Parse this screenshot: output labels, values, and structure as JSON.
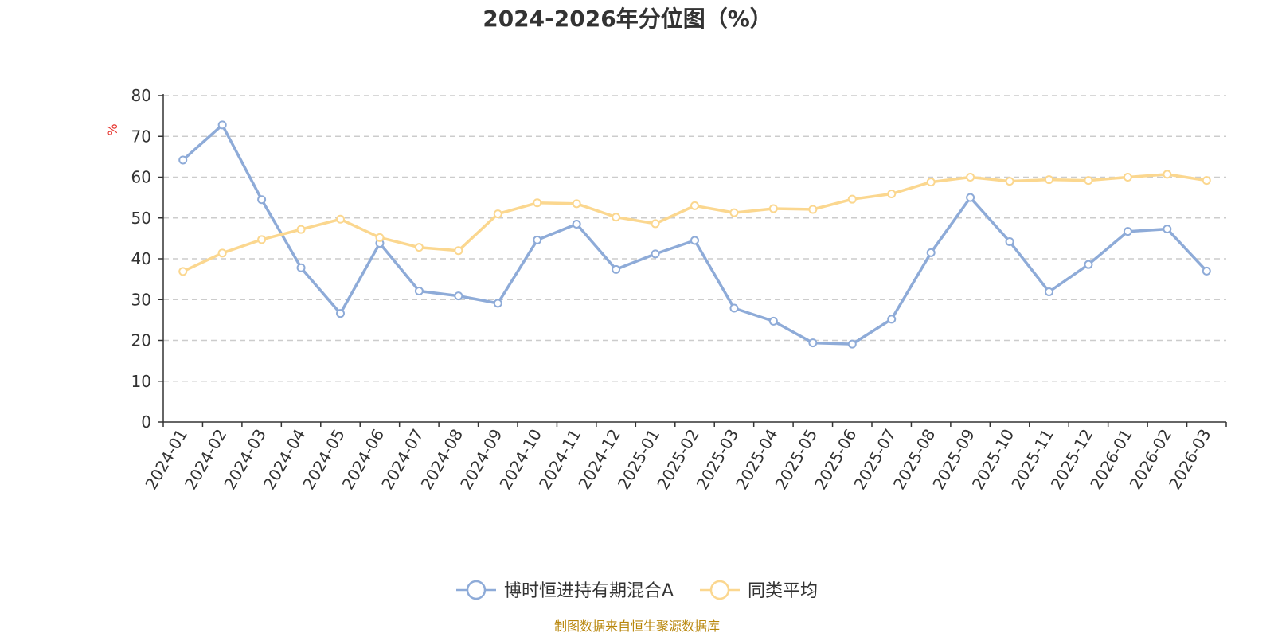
{
  "chart_data": {
    "type": "line",
    "title": "2024-2026年分位图（%）",
    "ylabel": "%",
    "ylim": [
      0,
      80
    ],
    "yticks": [
      0,
      10,
      20,
      30,
      40,
      50,
      60,
      70,
      80
    ],
    "grid": true,
    "legend_position": "bottom",
    "categories": [
      "2024-01",
      "2024-02",
      "2024-03",
      "2024-04",
      "2024-05",
      "2024-06",
      "2024-07",
      "2024-08",
      "2024-09",
      "2024-10",
      "2024-11",
      "2024-12",
      "2025-01",
      "2025-02",
      "2025-03",
      "2025-04",
      "2025-05",
      "2025-06",
      "2025-07",
      "2025-08",
      "2025-09",
      "2025-10",
      "2025-11",
      "2025-12",
      "2026-01",
      "2026-02",
      "2026-03"
    ],
    "series": [
      {
        "name": "博时恒进持有期混合A",
        "color": "#8eabd8",
        "values": [
          64.2,
          72.8,
          54.5,
          37.8,
          26.6,
          43.8,
          32.1,
          30.9,
          29.1,
          44.6,
          48.5,
          37.4,
          41.2,
          44.5,
          27.9,
          24.7,
          19.4,
          19.1,
          25.2,
          41.5,
          55.0,
          44.2,
          31.9,
          38.6,
          46.7,
          47.3,
          37.0
        ]
      },
      {
        "name": "同类平均",
        "color": "#fbd78f",
        "values": [
          36.9,
          41.4,
          44.7,
          47.2,
          49.7,
          45.2,
          42.8,
          42.0,
          51.0,
          53.7,
          53.5,
          50.2,
          48.6,
          53.0,
          51.3,
          52.3,
          52.1,
          54.6,
          55.9,
          58.8,
          60.0,
          59.0,
          59.4,
          59.2,
          60.0,
          60.7,
          59.2
        ]
      }
    ],
    "source": "制图数据来自恒生聚源数据库",
    "colors": {
      "axis": "#333333",
      "grid": "#cccccc",
      "unit": "#e6352f",
      "source": "#b8860b"
    }
  }
}
